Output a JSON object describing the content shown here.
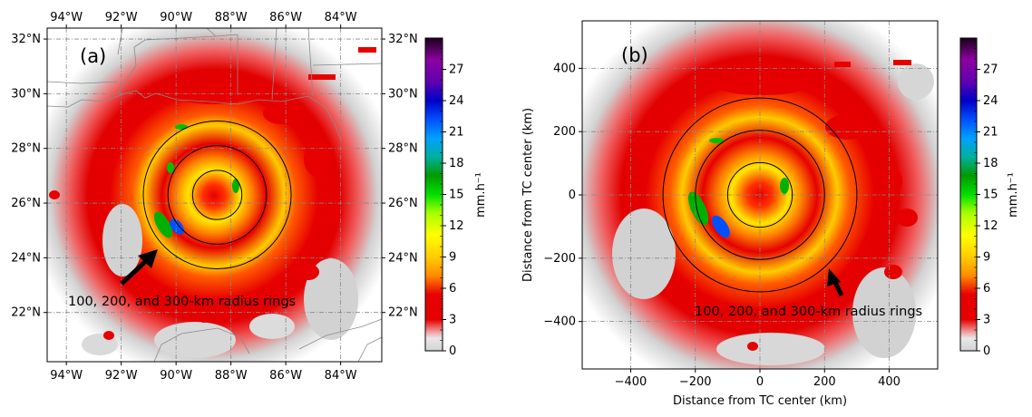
{
  "chart_data": [
    {
      "type": "heatmap",
      "panel_label": "(a)",
      "x_tick_labels": [
        "94°W",
        "92°W",
        "90°W",
        "88°W",
        "86°W",
        "84°W"
      ],
      "x_ticks": [
        -94,
        -92,
        -90,
        -88,
        -86,
        -84
      ],
      "xlim": [
        -94.7,
        -82.5
      ],
      "y_tick_labels": [
        "22°N",
        "24°N",
        "26°N",
        "28°N",
        "30°N",
        "32°N"
      ],
      "y_ticks": [
        22,
        24,
        26,
        28,
        30,
        32
      ],
      "ylim": [
        20.2,
        32.4
      ],
      "center": [
        -88.5,
        26.3
      ],
      "ring_radii_km": [
        100,
        200,
        300
      ],
      "grid": true,
      "annotation": "100, 200, and 300-km radius rings",
      "colorbar": {
        "label": "mm.h⁻¹",
        "ticks": [
          0,
          3,
          6,
          9,
          12,
          15,
          18,
          21,
          24,
          27
        ],
        "range": [
          0,
          30
        ]
      }
    },
    {
      "type": "heatmap",
      "panel_label": "(b)",
      "xlabel": "Distance from TC center (km)",
      "ylabel": "Distance from TC center (km)",
      "x_ticks": [
        -400,
        -200,
        0,
        200,
        400
      ],
      "y_ticks": [
        -400,
        -200,
        0,
        200,
        400
      ],
      "xlim": [
        -550,
        550
      ],
      "ylim": [
        -550,
        550
      ],
      "ring_radii_km": [
        100,
        200,
        300
      ],
      "grid": true,
      "annotation": "100, 200, and 300-km radius rings",
      "colorbar": {
        "label": "mm.h⁻¹",
        "ticks": [
          0,
          3,
          6,
          9,
          12,
          15,
          18,
          21,
          24,
          27
        ],
        "range": [
          0,
          30
        ]
      }
    }
  ],
  "colors": {
    "no_rain": "#cfcfcf",
    "light": "#e60000",
    "moderate": "#ff8a00",
    "heavy": "#ffe600",
    "very_heavy": "#00c000",
    "extreme": "#0050ff",
    "coast": "#8a8a8a"
  }
}
